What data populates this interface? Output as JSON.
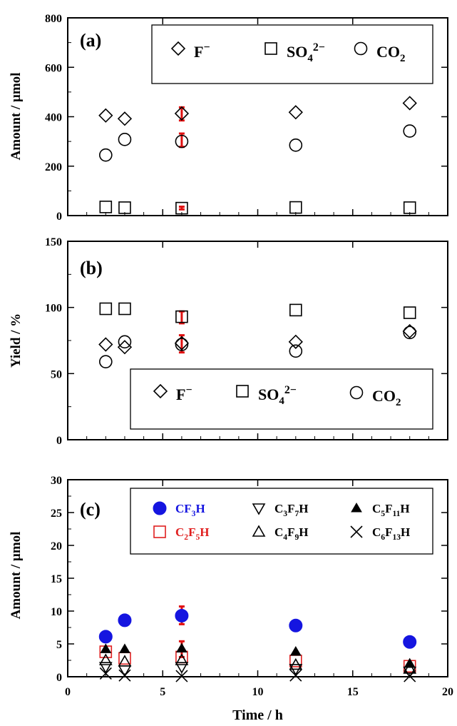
{
  "chart_data": [
    {
      "type": "scatter",
      "panel_label": "(a)",
      "xlabel": "",
      "ylabel": "Amount / µmol",
      "xlim": [
        0,
        20
      ],
      "ylim": [
        0,
        800
      ],
      "yticks": [
        "0",
        "200",
        "400",
        "600",
        "800"
      ],
      "legend_position": "top-right",
      "series": [
        {
          "name": "F⁻",
          "marker": "diamond-open",
          "color": "#000000",
          "x": [
            2,
            3,
            6,
            12,
            18
          ],
          "y": [
            405,
            392,
            413,
            418,
            455
          ]
        },
        {
          "name": "SO₄²⁻",
          "marker": "square-open",
          "color": "#000000",
          "x": [
            2,
            3,
            6,
            12,
            18
          ],
          "y": [
            35,
            32,
            30,
            33,
            32
          ]
        },
        {
          "name": "CO₂",
          "marker": "circle-open",
          "color": "#000000",
          "x": [
            2,
            3,
            6,
            12,
            18
          ],
          "y": [
            245,
            308,
            300,
            285,
            342
          ]
        }
      ],
      "error_bars": [
        {
          "x": 6,
          "low": 385,
          "high": 438
        },
        {
          "x": 6,
          "low": 278,
          "high": 332
        },
        {
          "x": 6,
          "low": 25,
          "high": 36
        }
      ]
    },
    {
      "type": "scatter",
      "panel_label": "(b)",
      "xlabel": "",
      "ylabel": "Yield / %",
      "xlim": [
        0,
        20
      ],
      "ylim": [
        0,
        150
      ],
      "yticks": [
        "0",
        "50",
        "100",
        "150"
      ],
      "legend_position": "bottom-right",
      "series": [
        {
          "name": "F⁻",
          "marker": "diamond-open",
          "color": "#000000",
          "x": [
            2,
            3,
            6,
            12,
            18
          ],
          "y": [
            72,
            70,
            73,
            74,
            82
          ]
        },
        {
          "name": "SO₄²⁻",
          "marker": "square-open",
          "color": "#000000",
          "x": [
            2,
            3,
            6,
            12,
            18
          ],
          "y": [
            99,
            99,
            93,
            98,
            96
          ]
        },
        {
          "name": "CO₂",
          "marker": "circle-open",
          "color": "#000000",
          "x": [
            2,
            3,
            6,
            12,
            18
          ],
          "y": [
            59,
            74,
            72,
            67,
            81
          ]
        }
      ],
      "error_bars": [
        {
          "x": 6,
          "low": 88,
          "high": 97
        },
        {
          "x": 6,
          "low": 66,
          "high": 79
        }
      ]
    },
    {
      "type": "scatter",
      "panel_label": "(c)",
      "xlabel": "Time / h",
      "ylabel": "Amount / µmol",
      "xlim": [
        0,
        20
      ],
      "ylim": [
        0,
        30
      ],
      "xticks": [
        "0",
        "5",
        "10",
        "15",
        "20"
      ],
      "yticks": [
        "0",
        "5",
        "10",
        "15",
        "20",
        "25",
        "30"
      ],
      "legend_position": "top-right",
      "series": [
        {
          "name": "CF₃H",
          "marker": "circle-filled",
          "color": "#1515e0",
          "x": [
            2,
            3,
            6,
            12,
            18
          ],
          "y": [
            6.1,
            8.6,
            9.3,
            7.8,
            5.3
          ]
        },
        {
          "name": "C₂F₅H",
          "marker": "square-open",
          "color": "#e02020",
          "x": [
            2,
            3,
            6,
            12,
            18
          ],
          "y": [
            3.8,
            2.8,
            3.0,
            2.4,
            1.6
          ]
        },
        {
          "name": "C₃F₇H",
          "marker": "triangle-down-open",
          "color": "#000000",
          "x": [
            2,
            3,
            6,
            12,
            18
          ],
          "y": [
            1.5,
            1.0,
            1.5,
            1.2,
            0.8
          ]
        },
        {
          "name": "C₄F₉H",
          "marker": "triangle-up-open",
          "color": "#000000",
          "x": [
            2,
            3,
            6,
            12,
            18
          ],
          "y": [
            2.5,
            2.3,
            2.5,
            1.8,
            1.2
          ]
        },
        {
          "name": "C₅F₁₁H",
          "marker": "triangle-up-filled",
          "color": "#000000",
          "x": [
            2,
            3,
            6,
            12,
            18
          ],
          "y": [
            4.2,
            4.2,
            4.3,
            3.8,
            2.0
          ]
        },
        {
          "name": "C₆F₁₃H",
          "marker": "cross",
          "color": "#000000",
          "x": [
            2,
            3,
            6,
            12,
            18
          ],
          "y": [
            0.5,
            0.2,
            0.1,
            0.2,
            0.1
          ]
        }
      ],
      "error_bars": [
        {
          "x": 6,
          "low": 8.0,
          "high": 10.7
        },
        {
          "x": 6,
          "low": 3.0,
          "high": 5.4
        }
      ]
    }
  ]
}
